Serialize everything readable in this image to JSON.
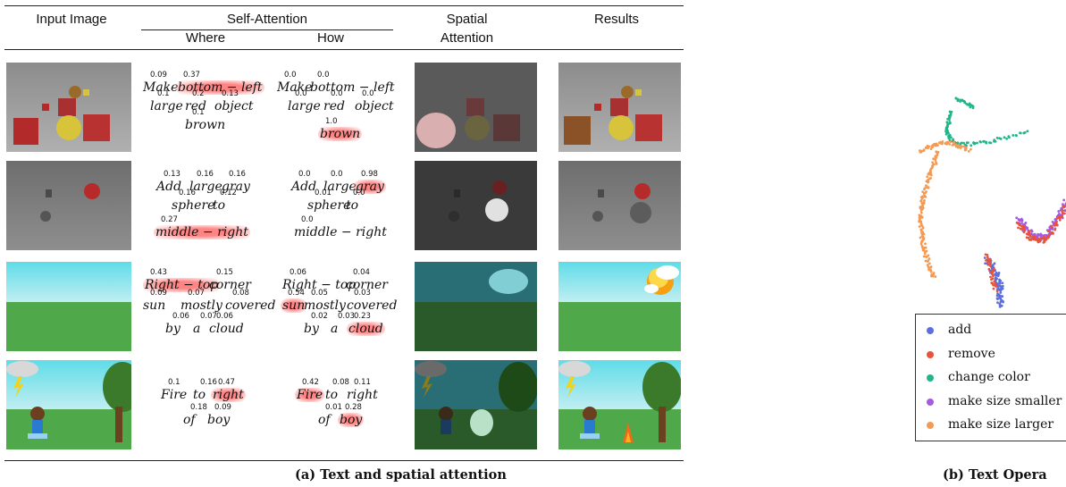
{
  "header": {
    "input_image": "Input Image",
    "self_attention": "Self-Attention",
    "where": "Where",
    "how": "How",
    "spatial_line1": "Spatial",
    "spatial_line2": "Attention",
    "results": "Results"
  },
  "rows": [
    {
      "where": [
        {
          "w": "Make",
          "n": "0.09"
        },
        {
          "w": "bottom − left",
          "n": "0.37",
          "hl": true
        },
        {
          "w": "large",
          "n": "0.1"
        },
        {
          "w": "red",
          "n": "0.2"
        },
        {
          "w": "object",
          "n": "0.13"
        },
        {
          "w": "brown",
          "n": "0.1"
        }
      ],
      "how": [
        {
          "w": "Make",
          "n": "0.0"
        },
        {
          "w": "bottom − left",
          "n": "0.0"
        },
        {
          "w": "large",
          "n": "0.0"
        },
        {
          "w": "red",
          "n": "0.0"
        },
        {
          "w": "object",
          "n": "0.0"
        },
        {
          "w": "brown",
          "n": "1.0",
          "hl": true
        }
      ]
    },
    {
      "where": [
        {
          "w": "Add",
          "n": "0.13"
        },
        {
          "w": "large",
          "n": "0.16"
        },
        {
          "w": "gray",
          "n": "0.16"
        },
        {
          "w": "sphere",
          "n": "0.16"
        },
        {
          "w": "to",
          "n": "0.12"
        },
        {
          "w": "middle − right",
          "n": "0.27",
          "hl": true
        }
      ],
      "how": [
        {
          "w": "Add",
          "n": "0.0"
        },
        {
          "w": "large",
          "n": "0.0"
        },
        {
          "w": "gray",
          "n": "0.98",
          "hl": true
        },
        {
          "w": "sphere",
          "n": "0.01"
        },
        {
          "w": "to",
          "n": "0.0"
        },
        {
          "w": "middle − right",
          "n": "0.0"
        }
      ]
    },
    {
      "where": [
        {
          "w": "Right − top",
          "n": "0.43",
          "hl": true
        },
        {
          "w": "corner",
          "n": "0.15"
        },
        {
          "w": "sun",
          "n": "0.09"
        },
        {
          "w": "mostly",
          "n": "0.07"
        },
        {
          "w": "covered",
          "n": "0.08"
        },
        {
          "w": "by",
          "n": "0.06"
        },
        {
          "w": "a",
          "n": "0.07"
        },
        {
          "w": "cloud",
          "n": "0.06"
        }
      ],
      "how": [
        {
          "w": "Right − top",
          "n": "0.06"
        },
        {
          "w": "corner",
          "n": "0.04"
        },
        {
          "w": "sun",
          "n": "0.54",
          "hl": true
        },
        {
          "w": "mostly",
          "n": "0.05"
        },
        {
          "w": "covered",
          "n": "0.03"
        },
        {
          "w": "by",
          "n": "0.02"
        },
        {
          "w": "a",
          "n": "0.03"
        },
        {
          "w": "cloud",
          "n": "0.23",
          "hl": true
        }
      ]
    },
    {
      "where": [
        {
          "w": "Fire",
          "n": "0.1"
        },
        {
          "w": "to",
          "n": "0.16"
        },
        {
          "w": "right",
          "n": "0.47",
          "hl": true
        },
        {
          "w": "of",
          "n": "0.18"
        },
        {
          "w": "boy",
          "n": "0.09"
        }
      ],
      "how": [
        {
          "w": "Fire",
          "n": "0.42",
          "hl": true
        },
        {
          "w": "to",
          "n": "0.08"
        },
        {
          "w": "right",
          "n": "0.11"
        },
        {
          "w": "of",
          "n": "0.01"
        },
        {
          "w": "boy",
          "n": "0.28",
          "hl": true
        }
      ]
    }
  ],
  "caption_a": "(a)  Text and spatial attention",
  "caption_b": "(b)  Text Opera",
  "legend": [
    {
      "label": "add",
      "color": "#5b6fe0"
    },
    {
      "label": "remove",
      "color": "#e8533a"
    },
    {
      "label": "change color",
      "color": "#22b58a"
    },
    {
      "label": "make size smaller",
      "color": "#a45be0"
    },
    {
      "label": "make size larger",
      "color": "#f39a55"
    }
  ]
}
